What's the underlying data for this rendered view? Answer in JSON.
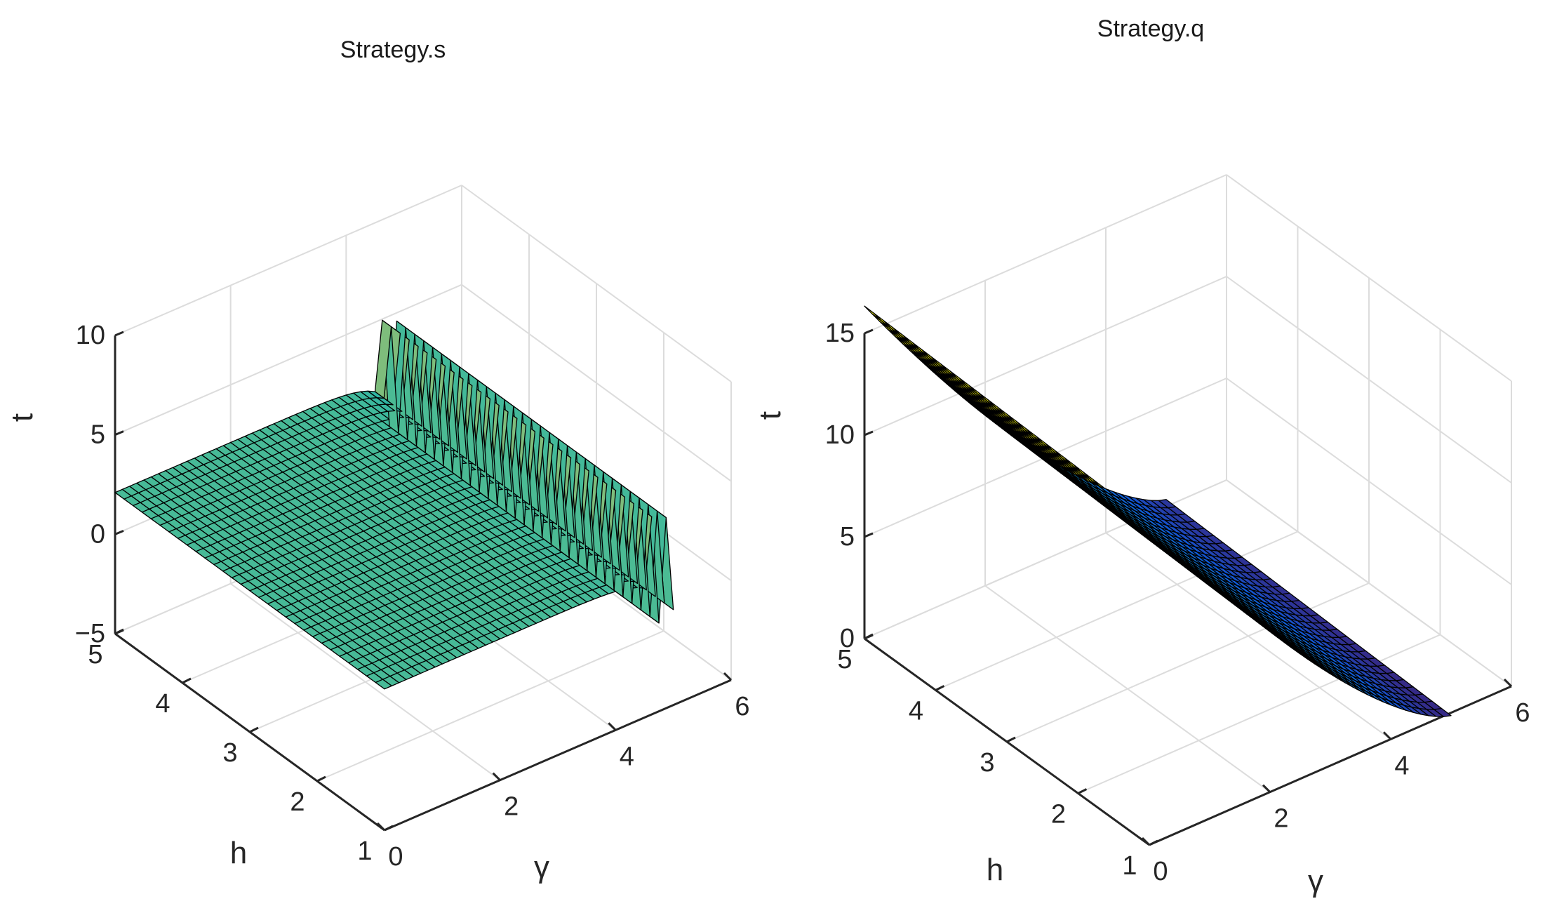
{
  "chart_data": [
    {
      "type": "surface",
      "title": "Strategy.s",
      "xlabel": "γ",
      "ylabel": "h",
      "zlabel": "t",
      "xlim": [
        0,
        6
      ],
      "ylim": [
        1,
        5
      ],
      "zlim": [
        -5,
        10
      ],
      "xticks": [
        "0",
        "2",
        "4",
        "6"
      ],
      "yticks": [
        "1",
        "2",
        "3",
        "4",
        "5"
      ],
      "zticks": [
        "-5",
        "0",
        "5",
        "10"
      ],
      "colormap": "parula",
      "grid": true,
      "surface": {
        "x_range": [
          0,
          5
        ],
        "y_range": [
          1,
          5
        ],
        "description_values": {
          "plateau_t": 2.1,
          "spike_x": 5.0,
          "spike_t_max": 7,
          "spike_t_min": -5
        }
      }
    },
    {
      "type": "surface",
      "title": "Strategy.q",
      "xlabel": "γ",
      "ylabel": "h",
      "zlabel": "t",
      "xlim": [
        0,
        6
      ],
      "ylim": [
        1,
        5
      ],
      "zlim": [
        0,
        15
      ],
      "xticks": [
        "0",
        "2",
        "4",
        "6"
      ],
      "yticks": [
        "1",
        "2",
        "3",
        "4",
        "5"
      ],
      "zticks": [
        "0",
        "5",
        "10",
        "15"
      ],
      "colormap": "parula",
      "grid": true,
      "surface": {
        "x_range": [
          0,
          5
        ],
        "y_range": [
          1,
          5
        ],
        "description_values": {
          "t_at_x0": 16.1,
          "t_at_x5": 0.1
        }
      }
    }
  ]
}
